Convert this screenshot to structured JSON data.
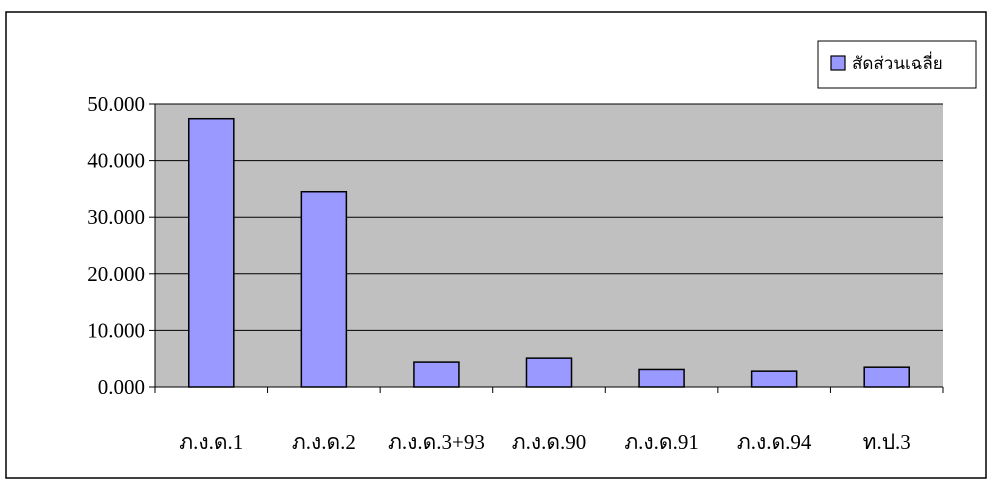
{
  "chart_data": {
    "type": "bar",
    "categories": [
      "ภ.ง.ด.1",
      "ภ.ง.ด.2",
      "ภ.ง.ด.3+93",
      "ภ.ง.ด.90",
      "ภ.ง.ด.91",
      "ภ.ง.ด.94",
      "ท.ป.3"
    ],
    "series": [
      {
        "name": "สัดส่วนเฉลี่ย",
        "values": [
          47.4,
          34.5,
          4.4,
          5.1,
          3.1,
          2.8,
          3.5
        ]
      }
    ],
    "ylim": [
      0,
      50
    ],
    "yticks": [
      0,
      10,
      20,
      30,
      40,
      50
    ],
    "ytick_labels": [
      "0.000",
      "10.000",
      "20.000",
      "30.000",
      "40.000",
      "50.000"
    ],
    "grid": true,
    "legend": "top-right",
    "colors": {
      "plot_background": "#c0c0c0",
      "bar_fill": "#9999ff",
      "bar_stroke": "#000000",
      "gridline": "#000000"
    }
  }
}
